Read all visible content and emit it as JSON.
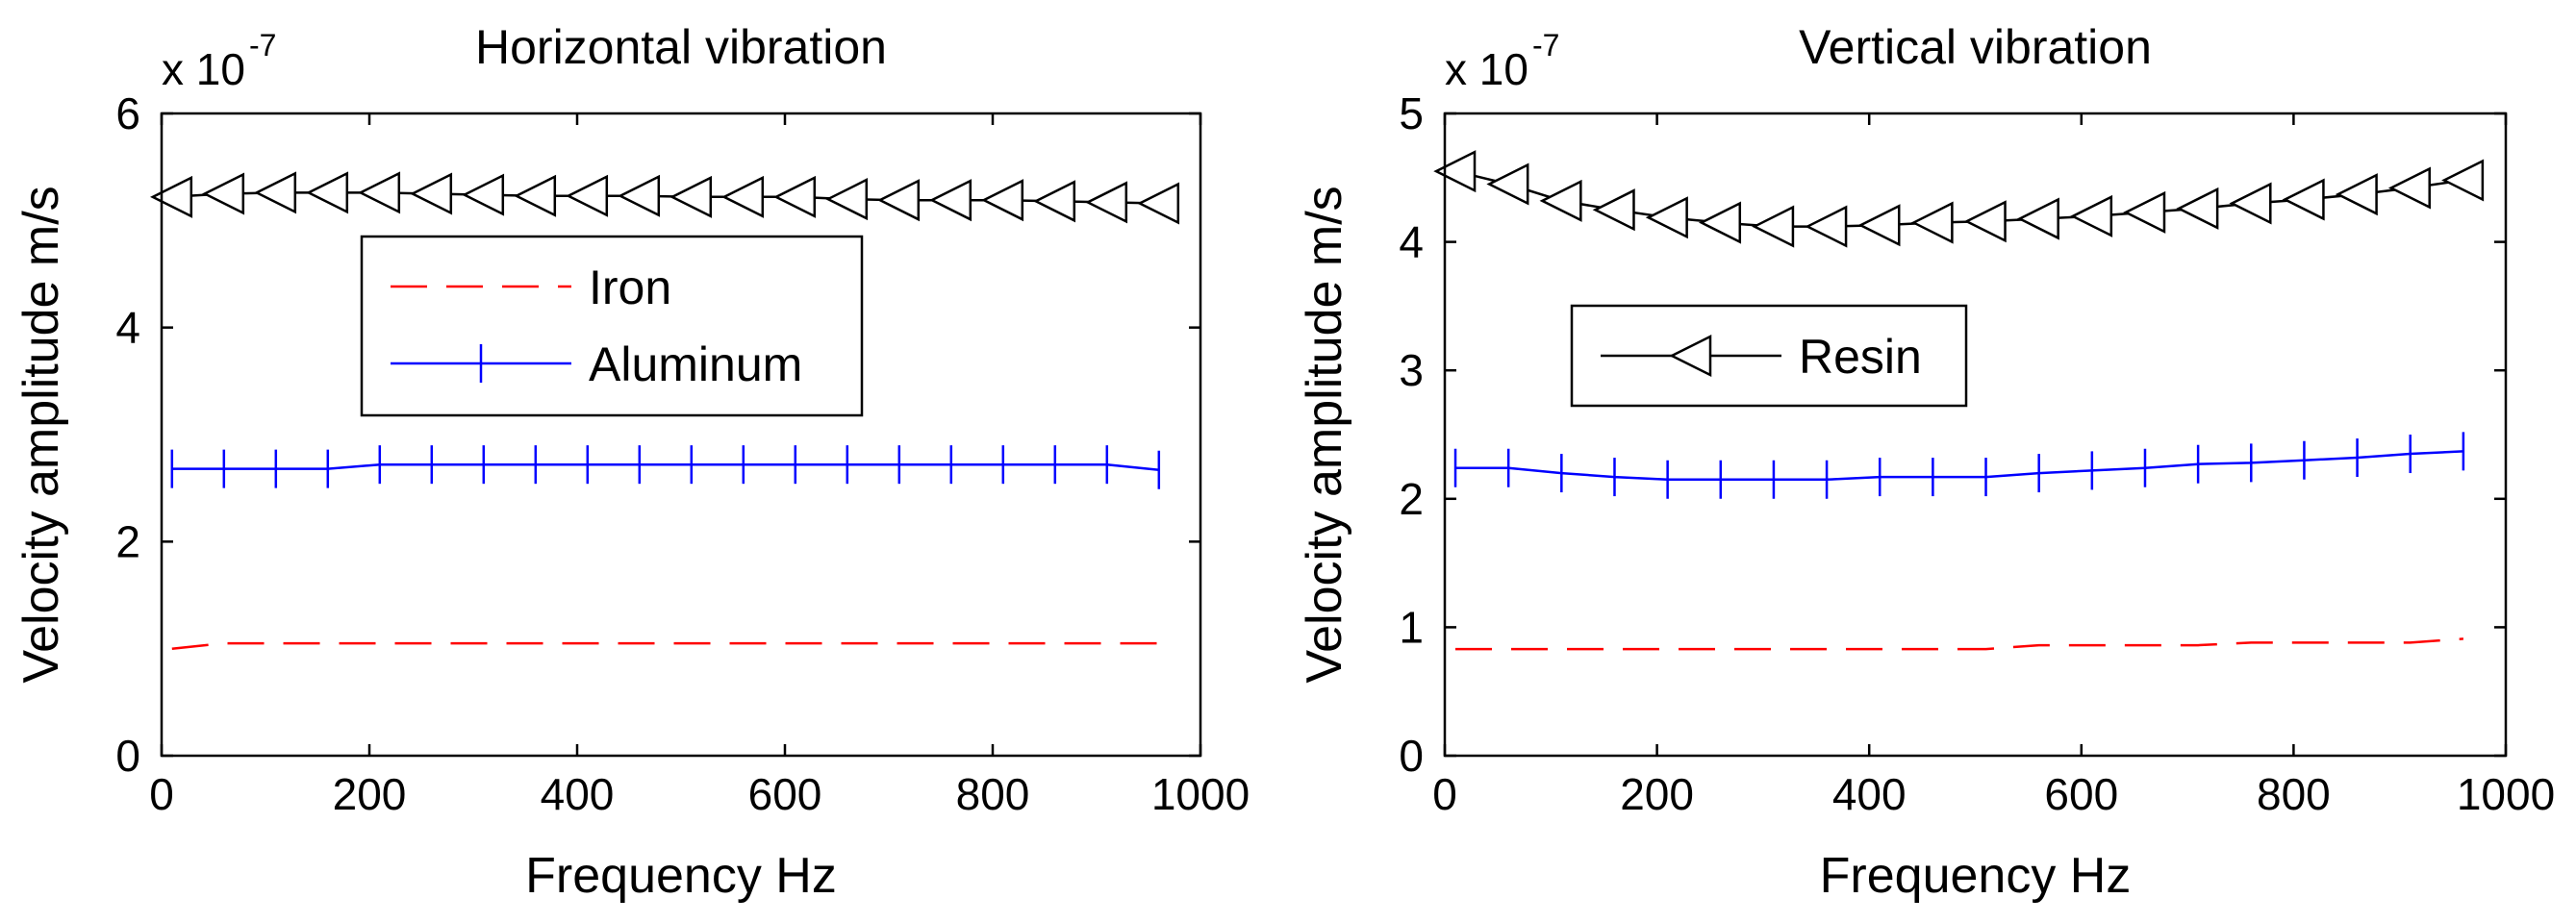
{
  "chart_data": [
    {
      "type": "line",
      "title": "Horizontal vibration",
      "xlabel": "Frequency Hz",
      "ylabel": "Velocity amplitude m/s",
      "y_multiplier": "x 10",
      "y_exponent": "-7",
      "xlim": [
        0,
        1000
      ],
      "ylim": [
        0,
        6
      ],
      "xticks": [
        0,
        200,
        400,
        600,
        800,
        1000
      ],
      "yticks": [
        0,
        2,
        4,
        6
      ],
      "legend": [
        "Iron",
        "Aluminum"
      ],
      "legend_position": "upper-middle",
      "x": [
        10,
        60,
        110,
        160,
        210,
        260,
        310,
        360,
        410,
        460,
        510,
        560,
        610,
        660,
        710,
        760,
        810,
        860,
        910,
        960
      ],
      "series": [
        {
          "name": "Iron",
          "color": "#ff0000",
          "style": "dashed",
          "marker": "none",
          "values": [
            1.0,
            1.05,
            1.05,
            1.05,
            1.05,
            1.05,
            1.05,
            1.05,
            1.05,
            1.05,
            1.05,
            1.05,
            1.05,
            1.05,
            1.05,
            1.05,
            1.05,
            1.05,
            1.05,
            1.05
          ]
        },
        {
          "name": "Aluminum",
          "color": "#0000ff",
          "style": "solid",
          "marker": "plus",
          "values": [
            2.68,
            2.68,
            2.68,
            2.68,
            2.72,
            2.72,
            2.72,
            2.72,
            2.72,
            2.72,
            2.72,
            2.72,
            2.72,
            2.72,
            2.72,
            2.72,
            2.72,
            2.72,
            2.72,
            2.67
          ]
        },
        {
          "name": "Resin",
          "color": "#000000",
          "style": "solid",
          "marker": "triangle-left",
          "values": [
            5.22,
            5.25,
            5.26,
            5.26,
            5.26,
            5.25,
            5.24,
            5.23,
            5.23,
            5.23,
            5.22,
            5.22,
            5.22,
            5.2,
            5.19,
            5.19,
            5.19,
            5.18,
            5.17,
            5.16
          ]
        }
      ]
    },
    {
      "type": "line",
      "title": "Vertical vibration",
      "xlabel": "Frequency Hz",
      "ylabel": "Velocity amplitude m/s",
      "y_multiplier": "x 10",
      "y_exponent": "-7",
      "xlim": [
        0,
        1000
      ],
      "ylim": [
        0,
        5
      ],
      "xticks": [
        0,
        200,
        400,
        600,
        800,
        1000
      ],
      "yticks": [
        0,
        1,
        2,
        3,
        4,
        5
      ],
      "legend": [
        "Resin"
      ],
      "legend_position": "middle-left",
      "x": [
        10,
        60,
        110,
        160,
        210,
        260,
        310,
        360,
        410,
        460,
        510,
        560,
        610,
        660,
        710,
        760,
        810,
        860,
        910,
        960
      ],
      "series": [
        {
          "name": "Iron",
          "color": "#ff0000",
          "style": "dashed",
          "marker": "none",
          "values": [
            0.83,
            0.83,
            0.83,
            0.83,
            0.83,
            0.83,
            0.83,
            0.83,
            0.83,
            0.83,
            0.83,
            0.86,
            0.86,
            0.86,
            0.86,
            0.88,
            0.88,
            0.88,
            0.88,
            0.91
          ]
        },
        {
          "name": "Aluminum",
          "color": "#0000ff",
          "style": "solid",
          "marker": "plus",
          "values": [
            2.24,
            2.24,
            2.2,
            2.17,
            2.15,
            2.15,
            2.15,
            2.15,
            2.17,
            2.17,
            2.17,
            2.2,
            2.22,
            2.24,
            2.27,
            2.28,
            2.3,
            2.32,
            2.35,
            2.37
          ]
        },
        {
          "name": "Resin",
          "color": "#000000",
          "style": "solid",
          "marker": "triangle-left",
          "values": [
            4.55,
            4.45,
            4.32,
            4.25,
            4.19,
            4.15,
            4.12,
            4.12,
            4.13,
            4.15,
            4.16,
            4.18,
            4.2,
            4.23,
            4.26,
            4.3,
            4.33,
            4.37,
            4.42,
            4.48
          ]
        }
      ]
    }
  ]
}
